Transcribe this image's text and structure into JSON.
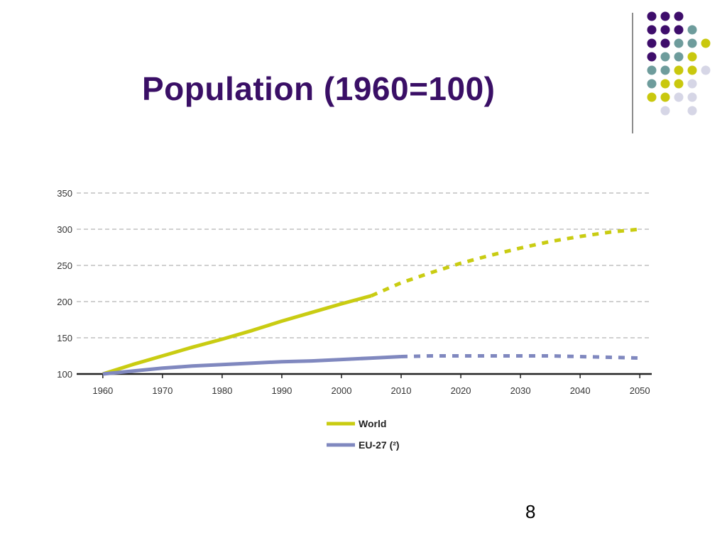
{
  "slide": {
    "title": "Population (1960=100)",
    "page_number": "8"
  },
  "decoration": {
    "colors": {
      "purple": "#3e0d6b",
      "teal": "#6e9c9c",
      "yellow": "#c9c80e",
      "lavender": "#d6d6e6"
    },
    "dot_grid": [
      [
        "purple",
        "purple",
        "purple",
        null
      ],
      [
        "purple",
        "purple",
        "purple",
        "teal"
      ],
      [
        "purple",
        "purple",
        "teal",
        "teal",
        "yellow"
      ],
      [
        "purple",
        "teal",
        "teal",
        "yellow"
      ],
      [
        "teal",
        "teal",
        "yellow",
        "yellow",
        "lavender"
      ],
      [
        "teal",
        "yellow",
        "yellow",
        "lavender"
      ],
      [
        "yellow",
        "yellow",
        "lavender",
        "lavender"
      ],
      [
        null,
        "lavender",
        null,
        "lavender"
      ]
    ]
  },
  "chart_data": {
    "type": "line",
    "title": "",
    "xlabel": "",
    "ylabel": "",
    "x_ticks": [
      1960,
      1970,
      1980,
      1990,
      2000,
      2010,
      2020,
      2030,
      2040,
      2050
    ],
    "y_ticks": [
      100,
      150,
      200,
      250,
      300,
      350
    ],
    "xlim": [
      1958,
      2052
    ],
    "ylim": [
      100,
      350
    ],
    "grid": "horizontal dashed",
    "legend_placement": "bottom",
    "series": [
      {
        "name": "World",
        "color": "#c9cc12",
        "observed": {
          "x": [
            1960,
            1965,
            1970,
            1975,
            1980,
            1985,
            1990,
            1995,
            2000,
            2005
          ],
          "y": [
            100,
            113,
            125,
            137,
            148,
            160,
            173,
            185,
            197,
            208
          ]
        },
        "projected": {
          "x": [
            2005,
            2010,
            2015,
            2020,
            2025,
            2030,
            2035,
            2040,
            2045,
            2050
          ],
          "y": [
            208,
            226,
            240,
            253,
            264,
            274,
            283,
            290,
            296,
            300
          ]
        }
      },
      {
        "name": "EU-27 (²)",
        "color": "#8088bf",
        "observed": {
          "x": [
            1960,
            1965,
            1970,
            1975,
            1980,
            1985,
            1990,
            1995,
            2000,
            2005,
            2010
          ],
          "y": [
            100,
            104,
            108,
            111,
            113,
            115,
            117,
            118,
            120,
            122,
            124
          ]
        },
        "projected": {
          "x": [
            2010,
            2015,
            2020,
            2025,
            2030,
            2035,
            2040,
            2045,
            2050
          ],
          "y": [
            124,
            125,
            125,
            125,
            125,
            125,
            124,
            123,
            122
          ]
        }
      }
    ]
  }
}
